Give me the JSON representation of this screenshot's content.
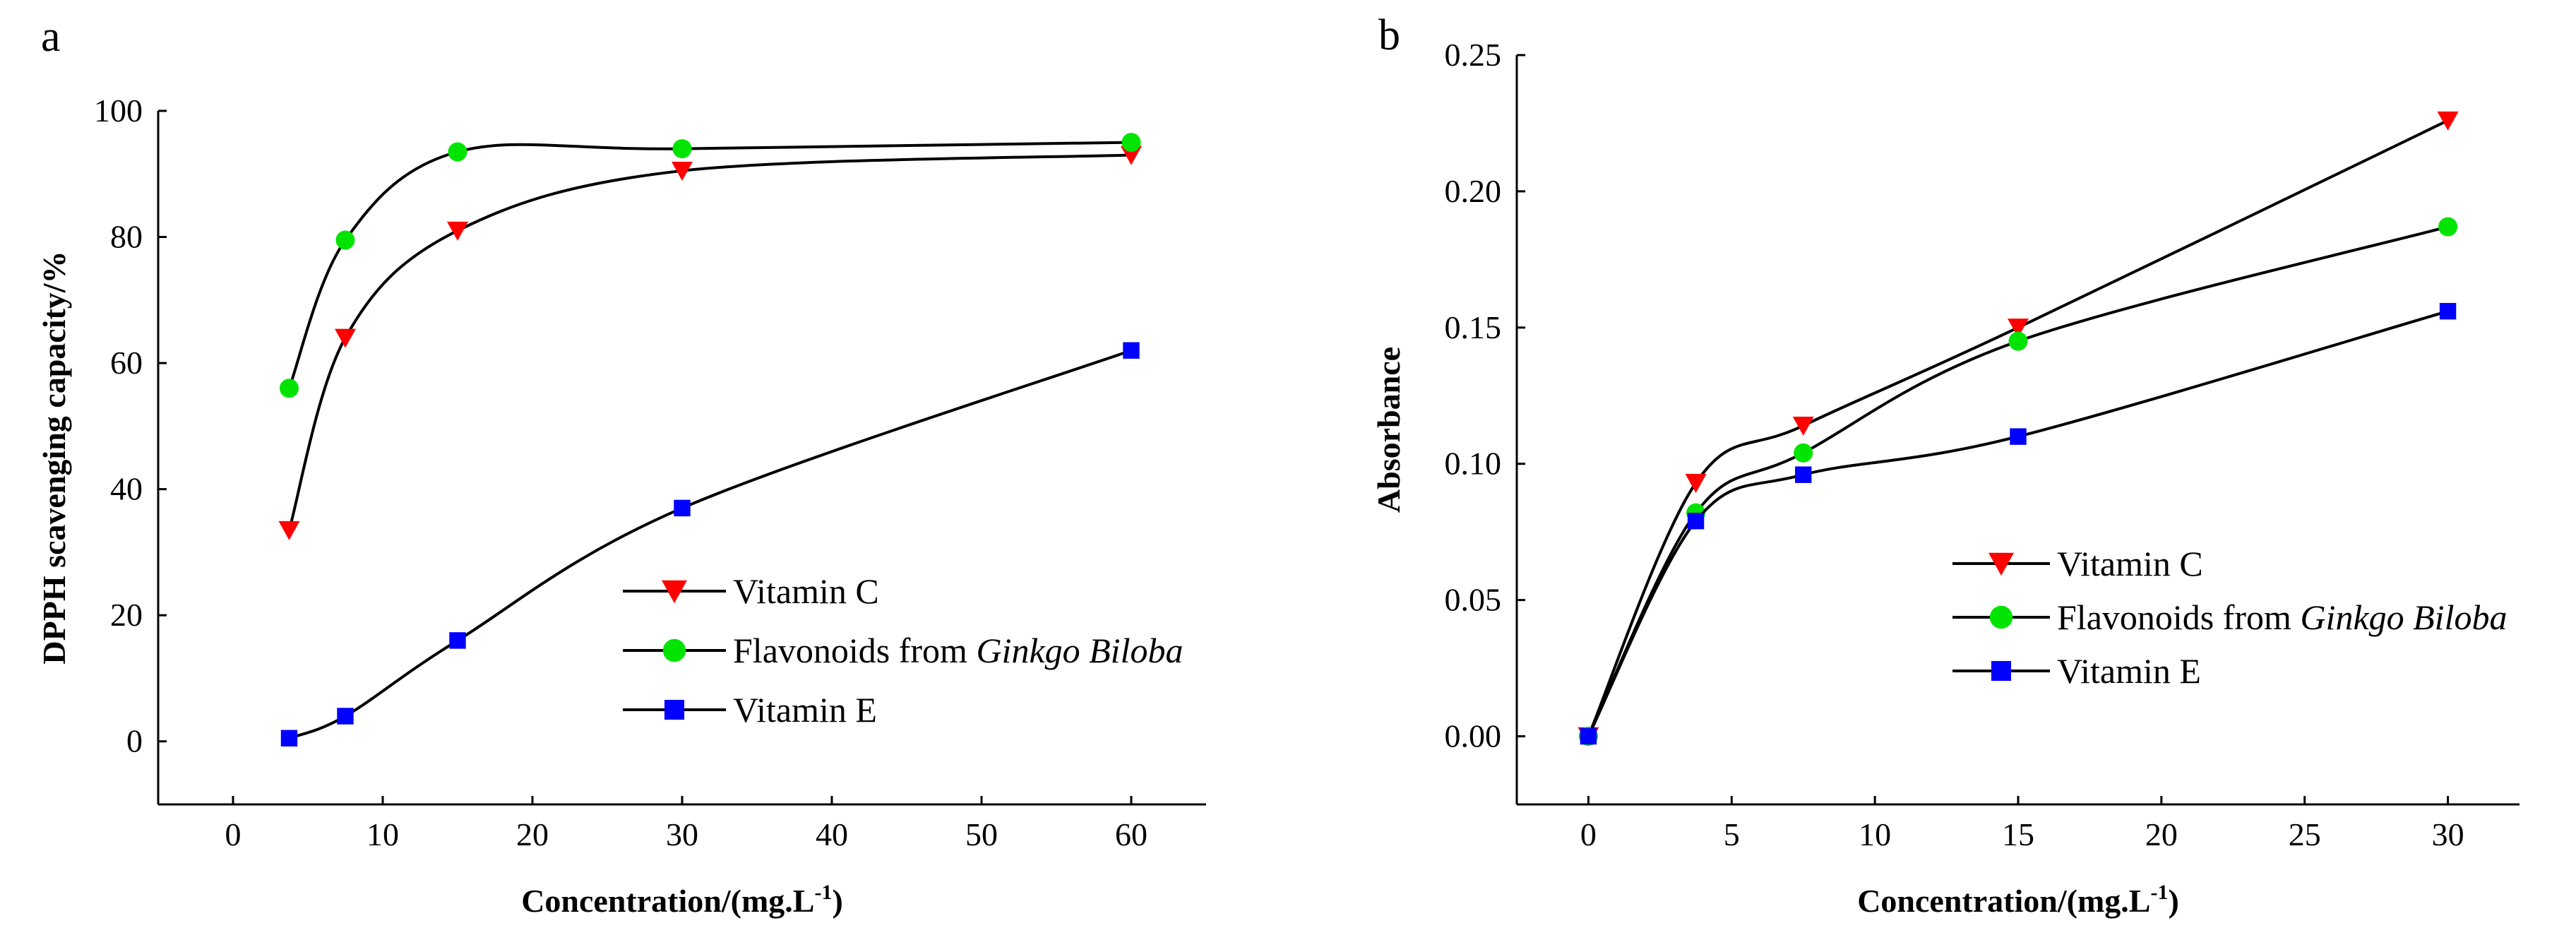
{
  "chart_data": [
    {
      "type": "line",
      "panel_label": "a",
      "title": "",
      "xlabel": "Concentration/(mg.L",
      "xlabel_sup": "-1",
      "xlabel_close": ")",
      "ylabel": "DPPH scavenging  capacity/%",
      "xlim": [
        -5,
        65
      ],
      "ylim": [
        -10,
        100
      ],
      "xticks": [
        0,
        10,
        20,
        30,
        40,
        50,
        60
      ],
      "yticks": [
        0,
        20,
        40,
        60,
        80,
        100
      ],
      "xtick_labels": [
        "0",
        "10",
        "20",
        "30",
        "40",
        "50",
        "60"
      ],
      "ytick_labels": [
        "0",
        "20",
        "40",
        "60",
        "80",
        "100"
      ],
      "legend_position": "bottom-right",
      "series": [
        {
          "name": "Vitamin C",
          "name_prefix": "Vitamin C",
          "name_italic": "",
          "marker": "triangle-down",
          "color": "#ff0000",
          "x": [
            3.75,
            7.5,
            15,
            30,
            60
          ],
          "y": [
            33.5,
            64,
            81,
            90.5,
            93
          ]
        },
        {
          "name": "Flavonoids from Ginkgo Biloba",
          "name_prefix": "Flavonoids from ",
          "name_italic": "Ginkgo Biloba",
          "marker": "circle",
          "color": "#00e400",
          "x": [
            3.75,
            7.5,
            15,
            30,
            60
          ],
          "y": [
            56,
            79.5,
            93.5,
            94,
            95
          ]
        },
        {
          "name": "Vitamin E",
          "name_prefix": "Vitamin E",
          "name_italic": "",
          "marker": "square",
          "color": "#0000ff",
          "x": [
            3.75,
            7.5,
            15,
            30,
            60
          ],
          "y": [
            0.5,
            4,
            16,
            37,
            62
          ]
        }
      ]
    },
    {
      "type": "line",
      "panel_label": "b",
      "title": "",
      "xlabel": "Concentration/(mg.L",
      "xlabel_sup": "-1",
      "xlabel_close": ")",
      "ylabel": "Absorbance",
      "xlim": [
        -2.5,
        32.5
      ],
      "ylim": [
        -0.025,
        0.25
      ],
      "xticks": [
        0,
        5,
        10,
        15,
        20,
        25,
        30
      ],
      "yticks": [
        0.0,
        0.05,
        0.1,
        0.15,
        0.2,
        0.25
      ],
      "xtick_labels": [
        "0",
        "5",
        "10",
        "15",
        "20",
        "25",
        "30"
      ],
      "ytick_labels": [
        "0.00",
        "0.05",
        "0.10",
        "0.15",
        "0.20",
        "0.25"
      ],
      "legend_position": "center-right",
      "series": [
        {
          "name": "Vitamin C",
          "name_prefix": "Vitamin C",
          "name_italic": "",
          "marker": "triangle-down",
          "color": "#ff0000",
          "x": [
            0,
            3.75,
            7.5,
            15,
            30
          ],
          "y": [
            0.0,
            0.093,
            0.114,
            0.15,
            0.226
          ]
        },
        {
          "name": "Flavonoids from Ginkgo Biloba",
          "name_prefix": "Flavonoids from ",
          "name_italic": "Ginkgo Biloba",
          "marker": "circle",
          "color": "#00e400",
          "x": [
            0,
            3.75,
            7.5,
            15,
            30
          ],
          "y": [
            0.0,
            0.082,
            0.104,
            0.145,
            0.187
          ]
        },
        {
          "name": "Vitamin E",
          "name_prefix": "Vitamin E",
          "name_italic": "",
          "marker": "square",
          "color": "#0000ff",
          "x": [
            0,
            3.75,
            7.5,
            15,
            30
          ],
          "y": [
            0.0,
            0.079,
            0.096,
            0.11,
            0.156
          ]
        }
      ]
    }
  ]
}
